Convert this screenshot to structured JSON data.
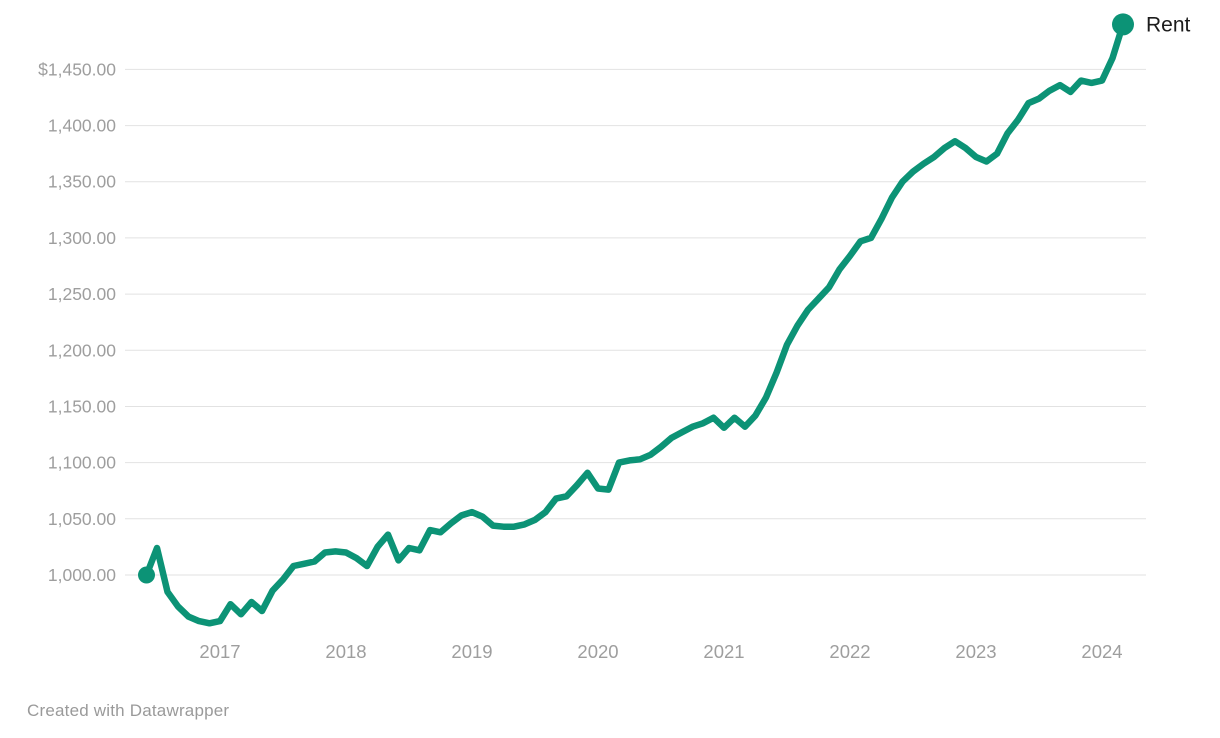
{
  "chart_data": {
    "type": "line",
    "title": "",
    "grid": true,
    "legend_position": "end-of-line-label",
    "series": [
      {
        "name": "Rent",
        "color": "#0c9376",
        "x": [
          "2016-06",
          "2016-07",
          "2016-08",
          "2016-09",
          "2016-10",
          "2016-11",
          "2016-12",
          "2017-01",
          "2017-02",
          "2017-03",
          "2017-04",
          "2017-05",
          "2017-06",
          "2017-07",
          "2017-08",
          "2017-09",
          "2017-10",
          "2017-11",
          "2017-12",
          "2018-01",
          "2018-02",
          "2018-03",
          "2018-04",
          "2018-05",
          "2018-06",
          "2018-07",
          "2018-08",
          "2018-09",
          "2018-10",
          "2018-11",
          "2018-12",
          "2019-01",
          "2019-02",
          "2019-03",
          "2019-04",
          "2019-05",
          "2019-06",
          "2019-07",
          "2019-08",
          "2019-09",
          "2019-10",
          "2019-11",
          "2019-12",
          "2020-01",
          "2020-02",
          "2020-03",
          "2020-04",
          "2020-05",
          "2020-06",
          "2020-07",
          "2020-08",
          "2020-09",
          "2020-10",
          "2020-11",
          "2020-12",
          "2021-01",
          "2021-02",
          "2021-03",
          "2021-04",
          "2021-05",
          "2021-06",
          "2021-07",
          "2021-08",
          "2021-09",
          "2021-10",
          "2021-11",
          "2021-12",
          "2022-01",
          "2022-02",
          "2022-03",
          "2022-04",
          "2022-05",
          "2022-06",
          "2022-07",
          "2022-08",
          "2022-09",
          "2022-10",
          "2022-11",
          "2022-12",
          "2023-01",
          "2023-02",
          "2023-03",
          "2023-04",
          "2023-05",
          "2023-06",
          "2023-07",
          "2023-08",
          "2023-09",
          "2023-10",
          "2023-11",
          "2023-12",
          "2024-01",
          "2024-02",
          "2024-03"
        ],
        "values": [
          1000,
          1024,
          985,
          972,
          963,
          959,
          957,
          959,
          974,
          965,
          976,
          968,
          986,
          996,
          1008,
          1010,
          1012,
          1020,
          1021,
          1020,
          1015,
          1008,
          1025,
          1036,
          1013,
          1024,
          1022,
          1040,
          1038,
          1046,
          1053,
          1056,
          1052,
          1044,
          1043,
          1043,
          1045,
          1049,
          1056,
          1068,
          1070,
          1080,
          1091,
          1077,
          1076,
          1100,
          1102,
          1103,
          1107,
          1114,
          1122,
          1127,
          1132,
          1135,
          1140,
          1131,
          1140,
          1132,
          1142,
          1158,
          1180,
          1205,
          1222,
          1236,
          1246,
          1256,
          1272,
          1284,
          1297,
          1300,
          1317,
          1336,
          1350,
          1359,
          1366,
          1372,
          1380,
          1386,
          1380,
          1372,
          1368,
          1375,
          1393,
          1405,
          1420,
          1424,
          1431,
          1436,
          1430,
          1440,
          1438,
          1440,
          1460,
          1490
        ],
        "start_marker_value": 1000,
        "end_marker_value": 1490
      }
    ],
    "x_axis": {
      "tick_labels": [
        "2017",
        "2018",
        "2019",
        "2020",
        "2021",
        "2022",
        "2023",
        "2024"
      ]
    },
    "y_axis": {
      "tick_values": [
        1450,
        1400,
        1350,
        1300,
        1250,
        1200,
        1150,
        1100,
        1050,
        1000
      ],
      "tick_labels": [
        "$1,450.00",
        "1,400.00",
        "1,350.00",
        "1,300.00",
        "1,250.00",
        "1,200.00",
        "1,150.00",
        "1,100.00",
        "1,050.00",
        "1,000.00"
      ],
      "ylim": [
        950,
        1495
      ]
    }
  },
  "labels": {
    "series_end_label": "Rent"
  },
  "footer": {
    "attribution": "Created with Datawrapper"
  },
  "colors": {
    "line": "#0c9376",
    "grid": "#e2e2e2",
    "axis_text": "#9e9e9e",
    "series_label_text": "#1c1c1c",
    "background": "#ffffff"
  }
}
